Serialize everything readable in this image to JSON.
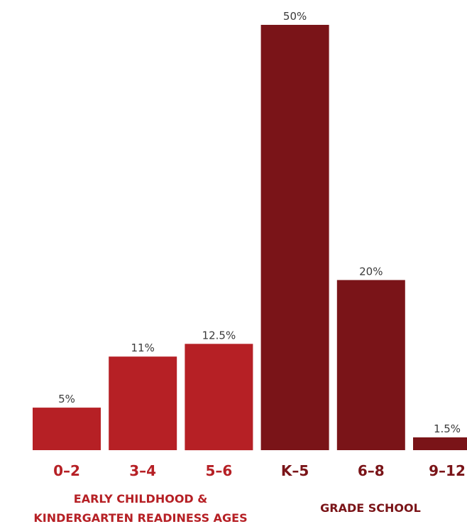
{
  "chart_data": {
    "type": "bar",
    "categories": [
      "0–2",
      "3–4",
      "5–6",
      "K–5",
      "6–8",
      "9–12"
    ],
    "values": [
      5,
      11,
      12.5,
      50,
      20,
      1.5
    ],
    "value_labels": [
      "5%",
      "11%",
      "12.5%",
      "50%",
      "20%",
      "1.5%"
    ],
    "ylim": [
      0,
      50
    ],
    "grid": false,
    "groups": [
      {
        "label_lines": [
          "EARLY CHILDHOOD &",
          "KINDERGARTEN READINESS AGES"
        ],
        "color": "#B62025",
        "indices": [
          0,
          1,
          2
        ]
      },
      {
        "label_lines": [
          "GRADE SCHOOL"
        ],
        "color": "#7A1418",
        "indices": [
          3,
          4,
          5
        ]
      }
    ]
  }
}
